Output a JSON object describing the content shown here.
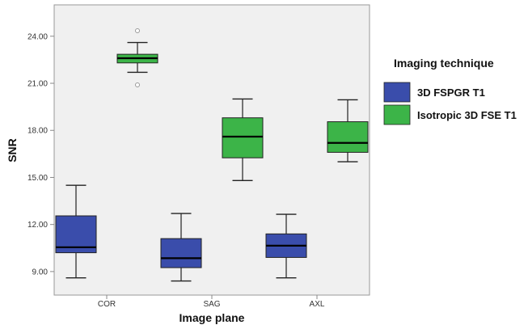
{
  "chart_data": {
    "type": "boxplot",
    "xlabel": "Image plane",
    "ylabel": "SNR",
    "categories": [
      "COR",
      "SAG",
      "AXL"
    ],
    "ylim": [
      7.5,
      26.0
    ],
    "yticks": [
      "9.00",
      "12.00",
      "15.00",
      "18.00",
      "21.00",
      "24.00"
    ],
    "ytick_values": [
      9,
      12,
      15,
      18,
      21,
      24
    ],
    "grid": false,
    "legend": {
      "title": "Imaging technique",
      "placement": "right"
    },
    "series": [
      {
        "name": "3D FSPGR T1",
        "color": "#3a4dab",
        "boxes": [
          {
            "category": "COR",
            "min": 8.6,
            "q1": 10.2,
            "median": 10.55,
            "q3": 12.55,
            "max": 14.5,
            "outliers": []
          },
          {
            "category": "SAG",
            "min": 8.4,
            "q1": 9.25,
            "median": 9.85,
            "q3": 11.1,
            "max": 12.7,
            "outliers": []
          },
          {
            "category": "AXL",
            "min": 8.6,
            "q1": 9.9,
            "median": 10.65,
            "q3": 11.4,
            "max": 12.65,
            "outliers": []
          }
        ]
      },
      {
        "name": "Isotropic 3D FSE T1",
        "color": "#3cb448",
        "boxes": [
          {
            "category": "COR",
            "min": 21.7,
            "q1": 22.3,
            "median": 22.6,
            "q3": 22.85,
            "max": 23.6,
            "outliers": [
              20.9,
              24.35
            ]
          },
          {
            "category": "SAG",
            "min": 14.8,
            "q1": 16.25,
            "median": 17.6,
            "q3": 18.8,
            "max": 20.0,
            "outliers": []
          },
          {
            "category": "AXL",
            "min": 16.0,
            "q1": 16.6,
            "median": 17.2,
            "q3": 18.55,
            "max": 19.95,
            "outliers": []
          }
        ]
      }
    ]
  }
}
